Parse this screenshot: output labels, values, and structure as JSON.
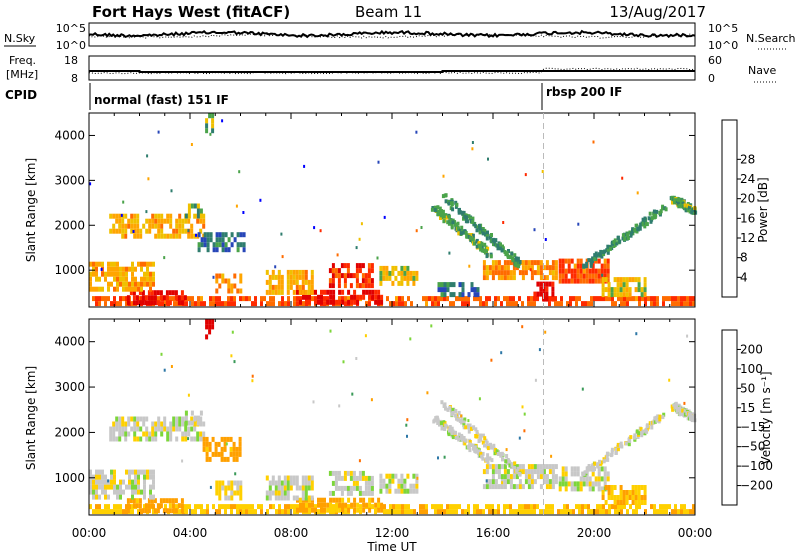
{
  "header": {
    "station": "Fort Hays West (fitACF)",
    "beam": "Beam 11",
    "date": "13/Aug/2017"
  },
  "top_panels": {
    "noise": {
      "left_label": "N.Sky",
      "right_label": "N.Search",
      "left_ticks": [
        "10^5",
        "10^0"
      ],
      "right_ticks": [
        "10^5",
        "10^0"
      ]
    },
    "freq": {
      "left_label_1": "Freq.",
      "left_label_2": "[MHz]",
      "right_label": "Nave",
      "left_ticks": [
        "18",
        "8"
      ],
      "right_ticks": [
        "60",
        "0"
      ]
    },
    "cpid": {
      "label": "CPID",
      "segments": [
        {
          "text": "normal (fast) 151 IF",
          "start_hour": 0.0
        },
        {
          "text": "rbsp 200 IF",
          "start_hour": 18.0
        }
      ]
    }
  },
  "chart_data": [
    {
      "type": "heatmap",
      "title": "",
      "xlabel": "Time UT",
      "ylabel": "Slant Range [km]",
      "x_range_hours": [
        0,
        24
      ],
      "x_tick_labels": [
        "00:00",
        "04:00",
        "08:00",
        "12:00",
        "16:00",
        "20:00",
        "00:00"
      ],
      "ylim": [
        180,
        4500
      ],
      "y_tick_values": [
        1000,
        2000,
        3000,
        4000
      ],
      "y_tick_labels": [
        "1000",
        "2000",
        "3000",
        "4000"
      ],
      "colorbar": {
        "label": "Power [dB]",
        "tick_labels": [
          "4",
          "8",
          "12",
          "16",
          "20",
          "24",
          "28"
        ],
        "range": [
          0,
          31
        ],
        "colors": [
          "#0000ff",
          "#2746b8",
          "#2f7d6e",
          "#4aa34a",
          "#f0c000",
          "#ffa500",
          "#ff6b00",
          "#ff2a00",
          "#e00000"
        ]
      },
      "regions": [
        {
          "t0": 0.0,
          "t1": 24.0,
          "r0": 200,
          "r1": 420,
          "value": 24
        },
        {
          "t0": 1.5,
          "t1": 3.8,
          "r0": 220,
          "r1": 480,
          "value": 29
        },
        {
          "t0": 8.2,
          "t1": 11.6,
          "r0": 230,
          "r1": 480,
          "value": 28
        },
        {
          "t0": 0.0,
          "t1": 2.5,
          "r0": 520,
          "r1": 1150,
          "value": 18
        },
        {
          "t0": 0.8,
          "t1": 4.5,
          "r0": 1700,
          "r1": 2250,
          "value": 18
        },
        {
          "t0": 3.8,
          "t1": 4.5,
          "r0": 2150,
          "r1": 2450,
          "value": 12
        },
        {
          "t0": 4.3,
          "t1": 6.2,
          "r0": 1400,
          "r1": 1800,
          "value": 8
        },
        {
          "t0": 5.0,
          "t1": 6.0,
          "r0": 480,
          "r1": 900,
          "value": 20
        },
        {
          "t0": 7.0,
          "t1": 8.8,
          "r0": 450,
          "r1": 900,
          "value": 18
        },
        {
          "t0": 9.5,
          "t1": 11.2,
          "r0": 600,
          "r1": 1150,
          "value": 26
        },
        {
          "t0": 11.5,
          "t1": 13.0,
          "r0": 650,
          "r1": 1000,
          "value": 16
        },
        {
          "t0": 13.8,
          "t1": 15.4,
          "r0": 400,
          "r1": 650,
          "value": 8
        },
        {
          "t0": 15.6,
          "t1": 18.5,
          "r0": 780,
          "r1": 1200,
          "value": 20
        },
        {
          "t0": 17.6,
          "t1": 18.4,
          "r0": 300,
          "r1": 700,
          "value": 30
        },
        {
          "t0": 18.6,
          "t1": 20.6,
          "r0": 700,
          "r1": 1200,
          "value": 24
        },
        {
          "t0": 20.3,
          "t1": 22.0,
          "r0": 400,
          "r1": 800,
          "value": 16
        },
        {
          "t0": 4.6,
          "t1": 4.9,
          "r0": 4050,
          "r1": 4450,
          "value": 12
        }
      ],
      "streaks": [
        {
          "t0": 14.0,
          "r0": 2600,
          "t1": 17.0,
          "r1": 1100,
          "value": 10
        },
        {
          "t0": 13.6,
          "r0": 2350,
          "t1": 15.8,
          "r1": 1350,
          "value": 12
        },
        {
          "t0": 19.5,
          "r0": 1050,
          "t1": 22.7,
          "r1": 2350,
          "value": 10
        },
        {
          "t0": 23.1,
          "r0": 2550,
          "t1": 23.9,
          "r1": 2300,
          "value": 12
        }
      ]
    },
    {
      "type": "heatmap",
      "title": "",
      "xlabel": "Time UT",
      "ylabel": "Slant Range [km]",
      "x_range_hours": [
        0,
        24
      ],
      "x_tick_labels": [
        "00:00",
        "04:00",
        "08:00",
        "12:00",
        "16:00",
        "20:00",
        "00:00"
      ],
      "ylim": [
        180,
        4500
      ],
      "y_tick_values": [
        1000,
        2000,
        3000,
        4000
      ],
      "y_tick_labels": [
        "1000",
        "2000",
        "3000",
        "4000"
      ],
      "colorbar": {
        "label": "Velocity [m s⁻¹]",
        "tick_labels": [
          "200",
          "100",
          "50",
          "15",
          "−15",
          "−50",
          "−100",
          "−200"
        ],
        "colors": [
          "#1f3fb5",
          "#2d77a6",
          "#3a9a58",
          "#7cd63a",
          "#c8c8c8",
          "#ffd000",
          "#ffa000",
          "#ff6e00",
          "#e00000"
        ]
      },
      "regions": [
        {
          "t0": 0.0,
          "t1": 24.0,
          "r0": 200,
          "r1": 420,
          "value": -40
        },
        {
          "t0": 1.5,
          "t1": 3.8,
          "r0": 220,
          "r1": 520,
          "value": -70
        },
        {
          "t0": 8.2,
          "t1": 11.6,
          "r0": 230,
          "r1": 480,
          "value": -60
        },
        {
          "t0": 0.0,
          "t1": 2.5,
          "r0": 520,
          "r1": 1150,
          "value": 0
        },
        {
          "t0": 0.8,
          "t1": 4.5,
          "r0": 1800,
          "r1": 2300,
          "value": 0
        },
        {
          "t0": 3.8,
          "t1": 4.5,
          "r0": 2150,
          "r1": 2400,
          "value": 0
        },
        {
          "t0": 4.5,
          "t1": 6.0,
          "r0": 1350,
          "r1": 1800,
          "value": -70
        },
        {
          "t0": 5.0,
          "t1": 6.0,
          "r0": 500,
          "r1": 900,
          "value": -20
        },
        {
          "t0": 7.0,
          "t1": 8.8,
          "r0": 500,
          "r1": 950,
          "value": 0
        },
        {
          "t0": 9.5,
          "t1": 11.2,
          "r0": 600,
          "r1": 1150,
          "value": 0
        },
        {
          "t0": 11.5,
          "t1": 13.0,
          "r0": 650,
          "r1": 1000,
          "value": 0
        },
        {
          "t0": 15.6,
          "t1": 18.5,
          "r0": 750,
          "r1": 1200,
          "value": 0
        },
        {
          "t0": 18.6,
          "t1": 20.6,
          "r0": 700,
          "r1": 1200,
          "value": 0
        },
        {
          "t0": 20.3,
          "t1": 22.0,
          "r0": 400,
          "r1": 800,
          "value": -40
        },
        {
          "t0": 4.6,
          "t1": 4.9,
          "r0": 4050,
          "r1": 4450,
          "value": -250
        }
      ],
      "streaks": [
        {
          "t0": 14.0,
          "r0": 2600,
          "t1": 17.0,
          "r1": 1100,
          "value": 0
        },
        {
          "t0": 13.6,
          "r0": 2300,
          "t1": 15.8,
          "r1": 1350,
          "value": 0
        },
        {
          "t0": 19.5,
          "r0": 1050,
          "t1": 22.7,
          "r1": 2350,
          "value": 0
        },
        {
          "t0": 23.1,
          "r0": 2550,
          "t1": 23.9,
          "r1": 2300,
          "value": 0
        }
      ]
    }
  ]
}
